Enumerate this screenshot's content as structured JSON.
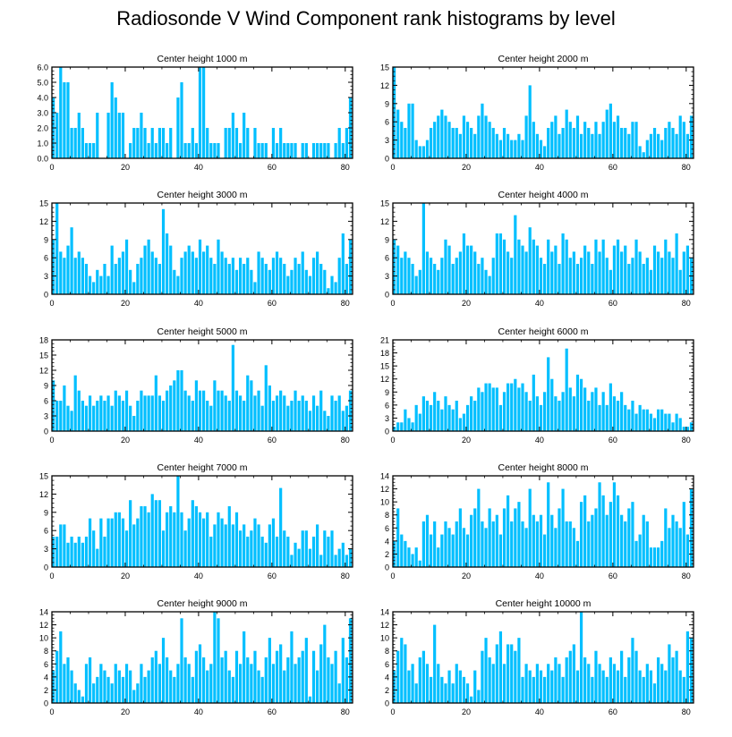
{
  "title": "Radiosonde V Wind Component rank histograms by level",
  "bar_color": "#00bfff",
  "chart_data": [
    {
      "type": "bar",
      "title": "Center height 1000 m",
      "x_ticks": [
        0,
        20,
        40,
        60,
        80
      ],
      "xlim": [
        0,
        82
      ],
      "ylim": [
        0,
        6
      ],
      "y_ticks": [
        "0.0",
        "1.0",
        "2.0",
        "3.0",
        "4.0",
        "5.0",
        "6.0"
      ],
      "values": [
        4,
        3,
        6,
        5,
        5,
        2,
        2,
        3,
        2,
        1,
        1,
        1,
        3,
        0,
        0,
        3,
        5,
        4,
        3,
        3,
        0,
        1,
        2,
        2,
        3,
        2,
        1,
        2,
        1,
        2,
        2,
        1,
        2,
        0,
        4,
        5,
        1,
        1,
        2,
        1,
        6,
        6,
        2,
        1,
        1,
        1,
        0,
        2,
        2,
        3,
        2,
        1,
        3,
        2,
        0,
        2,
        1,
        1,
        1,
        0,
        2,
        1,
        2,
        1,
        1,
        1,
        1,
        0,
        1,
        1,
        0,
        1,
        1,
        1,
        1,
        1,
        0,
        1,
        2,
        1,
        2,
        4
      ]
    },
    {
      "type": "bar",
      "title": "Center height 2000 m",
      "x_ticks": [
        0,
        20,
        40,
        60,
        80
      ],
      "xlim": [
        0,
        82
      ],
      "ylim": [
        0,
        15
      ],
      "y_ticks": [
        "0",
        "3",
        "6",
        "9",
        "12",
        "15"
      ],
      "values": [
        15,
        8,
        6,
        5,
        9,
        9,
        3,
        2,
        2,
        3,
        5,
        6,
        7,
        8,
        7,
        6,
        5,
        5,
        4,
        7,
        6,
        5,
        4,
        7,
        9,
        7,
        6,
        5,
        4,
        3,
        5,
        4,
        3,
        3,
        4,
        3,
        7,
        12,
        6,
        4,
        3,
        2,
        5,
        6,
        7,
        4,
        5,
        8,
        6,
        5,
        7,
        4,
        6,
        5,
        4,
        6,
        4,
        6,
        8,
        9,
        6,
        7,
        5,
        5,
        4,
        6,
        6,
        2,
        1,
        3,
        4,
        5,
        4,
        3,
        5,
        6,
        5,
        4,
        7,
        6,
        4,
        7
      ]
    },
    {
      "type": "bar",
      "title": "Center height 3000 m",
      "x_ticks": [
        0,
        20,
        40,
        60,
        80
      ],
      "xlim": [
        0,
        82
      ],
      "ylim": [
        0,
        15
      ],
      "y_ticks": [
        "0",
        "3",
        "6",
        "9",
        "12",
        "15"
      ],
      "values": [
        9,
        15,
        7,
        6,
        8,
        11,
        6,
        7,
        6,
        5,
        3,
        2,
        4,
        3,
        5,
        3,
        8,
        5,
        6,
        7,
        9,
        4,
        2,
        5,
        6,
        8,
        9,
        7,
        6,
        5,
        14,
        10,
        8,
        4,
        3,
        6,
        7,
        8,
        7,
        6,
        9,
        7,
        8,
        6,
        5,
        9,
        7,
        6,
        5,
        6,
        4,
        6,
        5,
        6,
        4,
        2,
        7,
        6,
        5,
        4,
        6,
        7,
        6,
        5,
        3,
        4,
        6,
        5,
        7,
        4,
        3,
        6,
        7,
        5,
        4,
        1,
        3,
        2,
        6,
        10,
        5,
        9
      ]
    },
    {
      "type": "bar",
      "title": "Center height 4000 m",
      "x_ticks": [
        0,
        20,
        40,
        60,
        80
      ],
      "xlim": [
        0,
        82
      ],
      "ylim": [
        0,
        15
      ],
      "y_ticks": [
        "0",
        "3",
        "6",
        "9",
        "12",
        "15"
      ],
      "values": [
        9,
        8,
        6,
        7,
        6,
        5,
        3,
        4,
        15,
        7,
        6,
        5,
        4,
        6,
        9,
        8,
        5,
        6,
        7,
        10,
        8,
        8,
        7,
        5,
        6,
        4,
        3,
        6,
        10,
        10,
        9,
        7,
        6,
        13,
        9,
        8,
        7,
        11,
        9,
        8,
        6,
        5,
        9,
        7,
        8,
        5,
        10,
        9,
        6,
        7,
        5,
        6,
        8,
        7,
        5,
        9,
        7,
        9,
        6,
        4,
        8,
        9,
        7,
        8,
        5,
        6,
        9,
        7,
        5,
        6,
        4,
        8,
        7,
        6,
        9,
        7,
        6,
        10,
        4,
        7,
        8,
        6
      ]
    },
    {
      "type": "bar",
      "title": "Center height 5000 m",
      "x_ticks": [
        0,
        20,
        40,
        60,
        80
      ],
      "xlim": [
        0,
        82
      ],
      "ylim": [
        0,
        18
      ],
      "y_ticks": [
        "0",
        "3",
        "6",
        "9",
        "12",
        "15",
        "18"
      ],
      "values": [
        10,
        6,
        6,
        9,
        5,
        4,
        11,
        8,
        6,
        5,
        7,
        5,
        6,
        7,
        6,
        7,
        5,
        8,
        7,
        6,
        8,
        5,
        3,
        6,
        8,
        7,
        7,
        7,
        11,
        7,
        6,
        8,
        9,
        10,
        12,
        12,
        8,
        7,
        6,
        10,
        8,
        8,
        6,
        5,
        10,
        8,
        8,
        7,
        6,
        17,
        8,
        7,
        6,
        11,
        10,
        7,
        8,
        5,
        13,
        9,
        6,
        7,
        8,
        7,
        5,
        6,
        8,
        6,
        7,
        6,
        4,
        7,
        5,
        8,
        4,
        3,
        7,
        6,
        7,
        4,
        5,
        8
      ]
    },
    {
      "type": "bar",
      "title": "Center height 6000 m",
      "x_ticks": [
        0,
        20,
        40,
        60,
        80
      ],
      "xlim": [
        0,
        82
      ],
      "ylim": [
        0,
        21
      ],
      "y_ticks": [
        "0",
        "3",
        "6",
        "9",
        "12",
        "15",
        "18",
        "21"
      ],
      "values": [
        1,
        2,
        2,
        5,
        3,
        2,
        6,
        4,
        8,
        7,
        6,
        9,
        7,
        5,
        8,
        6,
        5,
        7,
        3,
        4,
        6,
        8,
        7,
        10,
        9,
        11,
        11,
        10,
        10,
        6,
        9,
        11,
        11,
        12,
        10,
        11,
        9,
        7,
        13,
        8,
        6,
        9,
        17,
        12,
        8,
        7,
        9,
        19,
        10,
        8,
        13,
        12,
        10,
        7,
        9,
        10,
        6,
        9,
        6,
        11,
        8,
        7,
        9,
        6,
        5,
        7,
        4,
        6,
        5,
        5,
        4,
        3,
        5,
        5,
        4,
        4,
        2,
        4,
        3,
        1,
        1,
        2
      ]
    },
    {
      "type": "bar",
      "title": "Center height 7000 m",
      "x_ticks": [
        0,
        20,
        40,
        60,
        80
      ],
      "xlim": [
        0,
        82
      ],
      "ylim": [
        0,
        15
      ],
      "y_ticks": [
        "0",
        "3",
        "6",
        "9",
        "12",
        "15"
      ],
      "values": [
        5,
        5,
        7,
        7,
        4,
        5,
        4,
        5,
        4,
        5,
        8,
        6,
        3,
        8,
        5,
        8,
        8,
        9,
        9,
        8,
        6,
        11,
        7,
        8,
        10,
        10,
        9,
        12,
        11,
        11,
        6,
        9,
        10,
        9,
        15,
        9,
        6,
        8,
        11,
        10,
        9,
        8,
        9,
        5,
        7,
        9,
        8,
        7,
        10,
        7,
        9,
        6,
        7,
        5,
        6,
        8,
        7,
        5,
        4,
        7,
        8,
        5,
        13,
        6,
        5,
        2,
        4,
        3,
        6,
        6,
        3,
        5,
        7,
        2,
        6,
        5,
        6,
        2,
        3,
        4,
        2,
        3
      ]
    },
    {
      "type": "bar",
      "title": "Center height 8000 m",
      "x_ticks": [
        0,
        20,
        40,
        60,
        80
      ],
      "xlim": [
        0,
        82
      ],
      "ylim": [
        0,
        14
      ],
      "y_ticks": [
        "0",
        "2",
        "4",
        "6",
        "8",
        "10",
        "12",
        "14"
      ],
      "values": [
        4,
        9,
        5,
        4,
        3,
        2,
        3,
        1,
        7,
        8,
        5,
        7,
        3,
        5,
        7,
        6,
        5,
        7,
        9,
        6,
        5,
        8,
        9,
        12,
        7,
        6,
        9,
        7,
        8,
        5,
        9,
        11,
        7,
        9,
        10,
        7,
        6,
        12,
        8,
        7,
        8,
        5,
        13,
        8,
        6,
        9,
        12,
        7,
        7,
        6,
        4,
        10,
        11,
        7,
        8,
        9,
        13,
        11,
        8,
        10,
        13,
        11,
        8,
        7,
        9,
        10,
        4,
        5,
        8,
        7,
        3,
        3,
        3,
        4,
        9,
        6,
        8,
        7,
        6,
        10,
        5,
        12
      ]
    },
    {
      "type": "bar",
      "title": "Center height 9000 m",
      "x_ticks": [
        0,
        20,
        40,
        60,
        80
      ],
      "xlim": [
        0,
        82
      ],
      "ylim": [
        0,
        14
      ],
      "y_ticks": [
        "0",
        "2",
        "4",
        "6",
        "8",
        "10",
        "12",
        "14"
      ],
      "values": [
        5,
        8,
        11,
        6,
        7,
        5,
        3,
        2,
        1,
        6,
        7,
        3,
        4,
        6,
        5,
        4,
        3,
        6,
        5,
        4,
        6,
        5,
        2,
        3,
        6,
        4,
        5,
        7,
        8,
        6,
        10,
        7,
        5,
        4,
        6,
        13,
        7,
        6,
        4,
        8,
        9,
        7,
        5,
        6,
        14,
        13,
        7,
        8,
        5,
        4,
        8,
        6,
        11,
        7,
        6,
        8,
        5,
        4,
        7,
        10,
        6,
        8,
        9,
        5,
        7,
        11,
        6,
        7,
        8,
        10,
        1,
        8,
        5,
        9,
        12,
        7,
        6,
        8,
        3,
        10,
        7,
        13
      ]
    },
    {
      "type": "bar",
      "title": "Center height 10000 m",
      "x_ticks": [
        0,
        20,
        40,
        60,
        80
      ],
      "xlim": [
        0,
        82
      ],
      "ylim": [
        0,
        14
      ],
      "y_ticks": [
        "0",
        "2",
        "4",
        "6",
        "8",
        "10",
        "12",
        "14"
      ],
      "values": [
        5,
        8,
        10,
        9,
        5,
        6,
        3,
        7,
        8,
        6,
        4,
        12,
        6,
        4,
        3,
        5,
        3,
        6,
        5,
        4,
        3,
        1,
        5,
        2,
        8,
        10,
        7,
        6,
        9,
        11,
        6,
        9,
        9,
        8,
        10,
        4,
        6,
        5,
        4,
        6,
        5,
        4,
        6,
        5,
        7,
        6,
        4,
        7,
        8,
        9,
        5,
        14,
        7,
        6,
        4,
        8,
        6,
        5,
        4,
        7,
        6,
        5,
        8,
        4,
        7,
        10,
        8,
        5,
        4,
        6,
        5,
        3,
        7,
        6,
        5,
        9,
        7,
        8,
        5,
        4,
        11,
        10
      ]
    }
  ]
}
